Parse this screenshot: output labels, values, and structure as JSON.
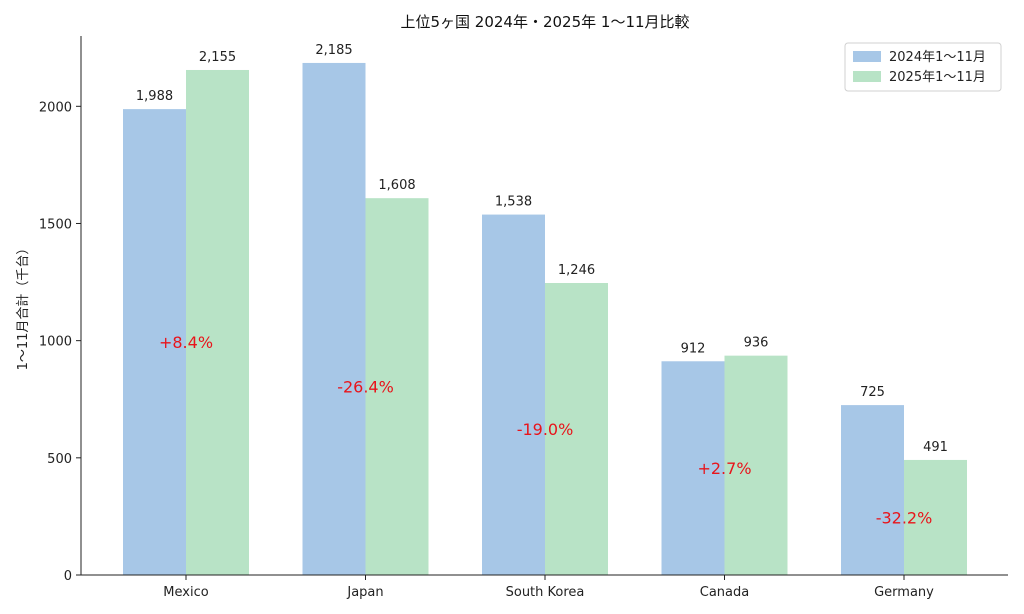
{
  "chart_data": {
    "type": "bar",
    "title": "上位5ヶ国 2024年・2025年 1〜11月比較",
    "xlabel": "",
    "ylabel": "1〜11月合計（千台）",
    "categories": [
      "Mexico",
      "Japan",
      "South Korea",
      "Canada",
      "Germany"
    ],
    "series": [
      {
        "name": "2024年1〜11月",
        "color": "#a7c7e7",
        "values": [
          1988,
          2185,
          1538,
          912,
          725
        ],
        "labels": [
          "1,988",
          "2,185",
          "1,538",
          "912",
          "725"
        ]
      },
      {
        "name": "2025年1〜11月",
        "color": "#b8e3c6",
        "values": [
          2155,
          1608,
          1246,
          936,
          491
        ],
        "labels": [
          "2,155",
          "1,608",
          "1,246",
          "936",
          "491"
        ]
      }
    ],
    "change_labels": [
      "+8.4%",
      "-26.4%",
      "-19.0%",
      "+2.7%",
      "-32.2%"
    ],
    "change_color": "#e8141b",
    "ylim": [
      0,
      2300
    ],
    "yticks": [
      0,
      500,
      1000,
      1500,
      2000
    ],
    "grid": false,
    "legend_position": "top-right"
  }
}
